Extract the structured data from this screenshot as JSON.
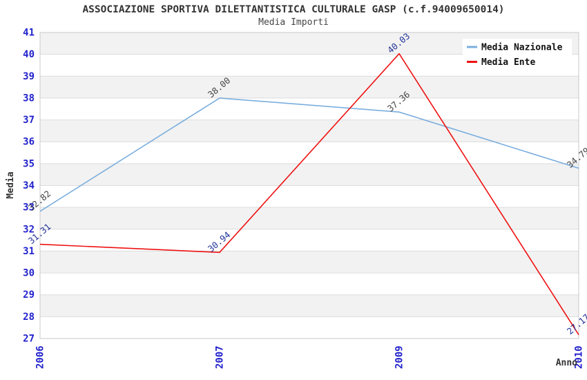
{
  "title": "ASSOCIAZIONE SPORTIVA DILETTANTISTICA CULTURALE GASP (c.f.94009650014)",
  "subtitle": "Media Importi",
  "colors": {
    "tick_label": "#2222cc",
    "axis_title": "#333333",
    "grid": "#dcdcdc",
    "band": "#f2f2f2",
    "plot_border": "#c9c9c9",
    "legend_bg": "#ffffff",
    "legend_text": "#111111",
    "nazionale_line": "#7aaede",
    "ente_line": "#ee1111",
    "nazionale_point_label": "#444444",
    "ente_point_label": "#223399"
  },
  "chart_data": {
    "type": "line",
    "x": [
      "2006",
      "2007",
      "2009",
      "2010"
    ],
    "xlabel": "Anno",
    "ylabel": "Media",
    "ylim": [
      27,
      41
    ],
    "ytick_step": 1,
    "grid": "on",
    "background_bands": "alternating gray/white per 1 unit",
    "legend_position": "top-right",
    "series": [
      {
        "name": "Media Nazionale",
        "color": "#7aaede",
        "label_color": "#444444",
        "values": [
          32.82,
          38.0,
          37.36,
          34.79
        ],
        "point_labels": [
          "32.82",
          "38.00",
          "37.36",
          "34.79"
        ]
      },
      {
        "name": "Media Ente",
        "color": "#ee1111",
        "label_color": "#223399",
        "values": [
          31.31,
          30.94,
          40.03,
          27.17
        ],
        "point_labels": [
          "31.31",
          "30.94",
          "40.03",
          "27.17"
        ]
      }
    ]
  }
}
